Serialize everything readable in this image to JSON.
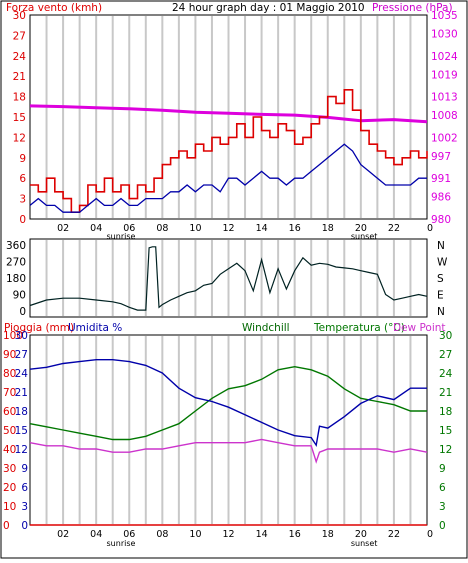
{
  "header": {
    "wind_title": "Forza vento (kmh)",
    "main_title": "24 hour graph day : 01 Maggio 2010",
    "pressure_title": "Pressione (hPa)"
  },
  "bottom_header": {
    "rain": "Pioggia (mm)",
    "humidity": "Umidita %",
    "windchill": "Windchill",
    "temperature": "Temperatura (°C)",
    "dewpoint": "Dew Point"
  },
  "x_ticks": [
    "02",
    "04",
    "06",
    "08",
    "10",
    "12",
    "14",
    "16",
    "18",
    "20",
    "22",
    "0"
  ],
  "sunrise_label": "sunrise",
  "sunset_label": "sunset",
  "direction_labels": [
    "N",
    "W",
    "S",
    "E",
    "N"
  ],
  "colors": {
    "wind": "#dd0000",
    "gust": "#0000aa",
    "pressure": "#dd00dd",
    "direction": "#002222",
    "humidity": "#0000aa",
    "temperature": "#007700",
    "dewpoint": "#cc33cc",
    "rain": "#dd0000",
    "windchill": "#006600"
  },
  "chart_data": [
    {
      "type": "line",
      "name": "wind-pressure",
      "x_range": [
        0,
        24
      ],
      "y_left": {
        "label": "Forza vento (kmh)",
        "ticks": [
          0,
          3,
          6,
          9,
          12,
          15,
          18,
          21,
          24,
          27,
          30
        ],
        "range": [
          0,
          30
        ]
      },
      "y_right": {
        "label": "Pressione (hPa)",
        "ticks": [
          980,
          986,
          991,
          997,
          1002,
          1008,
          1013,
          1019,
          1024,
          1030,
          1035
        ],
        "range": [
          980,
          1035
        ]
      },
      "series": [
        {
          "name": "wind",
          "x": [
            0,
            0.5,
            1,
            1.5,
            2,
            2.5,
            3,
            3.5,
            4,
            4.5,
            5,
            5.5,
            6,
            6.5,
            7,
            7.5,
            8,
            8.5,
            9,
            9.5,
            10,
            10.5,
            11,
            11.5,
            12,
            12.5,
            13,
            13.5,
            14,
            14.5,
            15,
            15.5,
            16,
            16.5,
            17,
            17.5,
            18,
            18.5,
            19,
            19.5,
            20,
            20.5,
            21,
            21.5,
            22,
            22.5,
            23,
            23.5,
            24
          ],
          "values": [
            5,
            4,
            6,
            4,
            3,
            1,
            2,
            5,
            4,
            6,
            4,
            5,
            3,
            5,
            4,
            6,
            8,
            9,
            10,
            9,
            11,
            10,
            12,
            11,
            12,
            14,
            12,
            15,
            13,
            12,
            14,
            13,
            11,
            12,
            14,
            15,
            18,
            17,
            19,
            16,
            13,
            11,
            10,
            9,
            8,
            9,
            10,
            9,
            10
          ]
        },
        {
          "name": "gust",
          "x": [
            0,
            0.5,
            1,
            1.5,
            2,
            2.5,
            3,
            3.5,
            4,
            4.5,
            5,
            5.5,
            6,
            6.5,
            7,
            7.5,
            8,
            8.5,
            9,
            9.5,
            10,
            10.5,
            11,
            11.5,
            12,
            12.5,
            13,
            13.5,
            14,
            14.5,
            15,
            15.5,
            16,
            16.5,
            17,
            17.5,
            18,
            18.5,
            19,
            19.5,
            20,
            20.5,
            21,
            21.5,
            22,
            22.5,
            23,
            23.5,
            24
          ],
          "values": [
            2,
            3,
            2,
            2,
            1,
            1,
            1,
            2,
            3,
            2,
            2,
            3,
            2,
            2,
            3,
            3,
            3,
            4,
            4,
            5,
            4,
            5,
            5,
            4,
            6,
            6,
            5,
            6,
            7,
            6,
            6,
            5,
            6,
            6,
            7,
            8,
            9,
            10,
            11,
            10,
            8,
            7,
            6,
            5,
            5,
            5,
            5,
            6,
            6
          ]
        },
        {
          "name": "pressure",
          "x": [
            0,
            2,
            4,
            6,
            8,
            10,
            12,
            14,
            16,
            18,
            20,
            22,
            24
          ],
          "values": [
            1010.5,
            1010.3,
            1010,
            1009.7,
            1009.3,
            1008.8,
            1008.5,
            1008.2,
            1008.0,
            1007.4,
            1006.5,
            1006.8,
            1006.2
          ]
        }
      ]
    },
    {
      "type": "line",
      "name": "wind-direction",
      "x_range": [
        0,
        24
      ],
      "y_left": {
        "ticks": [
          0,
          90,
          180,
          270,
          360
        ],
        "range": [
          0,
          360
        ]
      },
      "series": [
        {
          "name": "direction",
          "x": [
            0,
            1,
            2,
            3,
            4,
            5,
            5.5,
            6,
            6.5,
            7,
            7.2,
            7.4,
            7.6,
            7.8,
            8,
            8.5,
            9,
            9.5,
            10,
            10.5,
            11,
            11.5,
            12,
            12.5,
            13,
            13.5,
            14,
            14.5,
            15,
            15.5,
            16,
            16.5,
            17,
            17.5,
            18,
            18.5,
            19,
            19.5,
            20,
            20.5,
            21,
            21.5,
            22,
            22.5,
            23,
            23.5,
            24
          ],
          "values": [
            30,
            60,
            70,
            70,
            60,
            50,
            40,
            20,
            5,
            5,
            345,
            350,
            350,
            20,
            35,
            60,
            80,
            100,
            110,
            140,
            150,
            200,
            230,
            260,
            220,
            110,
            280,
            100,
            230,
            120,
            220,
            290,
            250,
            260,
            255,
            240,
            235,
            230,
            220,
            210,
            200,
            90,
            60,
            70,
            80,
            90,
            80
          ]
        }
      ]
    },
    {
      "type": "line",
      "name": "rain-humidity-temperature",
      "x_range": [
        0,
        24
      ],
      "y_left_rain": {
        "label": "Pioggia (mm)",
        "ticks": [
          0,
          10,
          20,
          30,
          40,
          50,
          60,
          70,
          80,
          90,
          100
        ]
      },
      "y_left_humidity": {
        "label": "Umidita %",
        "ticks": [
          0,
          3,
          6,
          9,
          12,
          15,
          18,
          21,
          24,
          27,
          30
        ]
      },
      "y_right": {
        "label": "Temperatura (°C)",
        "ticks": [
          0,
          3,
          6,
          9,
          12,
          15,
          18,
          21,
          24,
          27,
          30
        ],
        "range": [
          0,
          30
        ]
      },
      "series": [
        {
          "name": "humidity",
          "x": [
            0,
            1,
            2,
            3,
            4,
            5,
            6,
            7,
            8,
            9,
            10,
            11,
            12,
            13,
            14,
            15,
            16,
            17,
            17.3,
            17.5,
            18,
            19,
            20,
            21,
            22,
            23,
            23.5,
            24
          ],
          "values": [
            82,
            83,
            85,
            86,
            87,
            87,
            86,
            84,
            80,
            72,
            67,
            65,
            62,
            58,
            54,
            50,
            47,
            46,
            42,
            52,
            51,
            57,
            64,
            68,
            66,
            72,
            72,
            72
          ]
        },
        {
          "name": "temperature",
          "x": [
            0,
            1,
            2,
            3,
            4,
            5,
            6,
            7,
            8,
            9,
            10,
            11,
            12,
            13,
            14,
            15,
            16,
            17,
            18,
            19,
            20,
            21,
            22,
            23,
            24
          ],
          "values": [
            16,
            15.5,
            15,
            14.5,
            14,
            13.5,
            13.5,
            14,
            15,
            16,
            18,
            20,
            21.5,
            22,
            23,
            24.5,
            25,
            24.5,
            23.5,
            21.5,
            20,
            19.5,
            19,
            18,
            18
          ]
        },
        {
          "name": "dewpoint",
          "x": [
            0,
            1,
            2,
            3,
            4,
            5,
            6,
            7,
            8,
            9,
            10,
            11,
            12,
            13,
            14,
            15,
            16,
            17,
            17.3,
            17.5,
            18,
            19,
            20,
            21,
            22,
            23,
            24
          ],
          "values": [
            13,
            12.5,
            12.5,
            12,
            12,
            11.5,
            11.5,
            12,
            12,
            12.5,
            13,
            13,
            13,
            13,
            13.5,
            13,
            12.5,
            12.5,
            10,
            11.5,
            12,
            12,
            12,
            12,
            11.5,
            12,
            11.5
          ]
        },
        {
          "name": "rain",
          "x": [
            0,
            24
          ],
          "values": [
            0,
            0
          ]
        }
      ]
    }
  ]
}
